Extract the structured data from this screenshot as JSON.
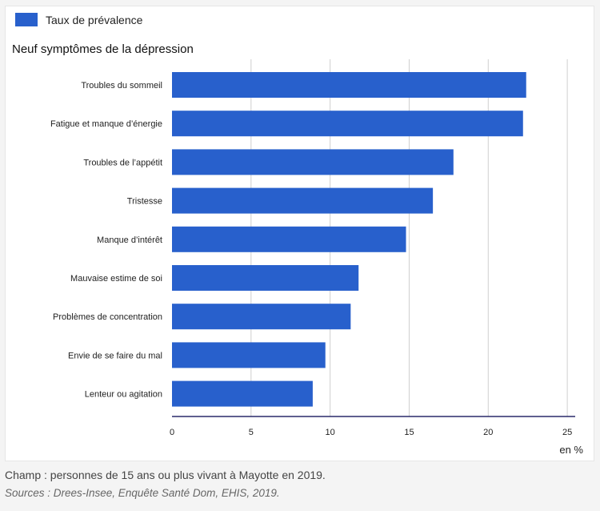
{
  "chart_data": {
    "type": "bar",
    "orientation": "horizontal",
    "title": "Neuf symptômes de la dépression",
    "legend": [
      "Taux de prévalence"
    ],
    "legend_position": "top-left",
    "categories": [
      "Troubles du sommeil",
      "Fatigue et manque d’énergie",
      "Troubles de l’appétit",
      "Tristesse",
      "Manque d’intérêt",
      "Mauvaise estime de soi",
      "Problèmes de concentration",
      "Envie de se faire du mal",
      "Lenteur ou agitation"
    ],
    "series": [
      {
        "name": "Taux de prévalence",
        "values": [
          22.4,
          22.2,
          17.8,
          16.5,
          14.8,
          11.8,
          11.3,
          9.7,
          8.9
        ]
      }
    ],
    "xlim": [
      0,
      25.5
    ],
    "xticks": [
      "0",
      "5",
      "10",
      "15",
      "20",
      "25"
    ],
    "xlabel": "en %",
    "grid": "vertical",
    "bar_color": "#2860cc"
  },
  "notes": {
    "champ": "Champ : personnes de 15 ans ou plus vivant à Mayotte en 2019.",
    "sources": "Sources : Drees-Insee, Enquête Santé Dom, EHIS, 2019."
  }
}
